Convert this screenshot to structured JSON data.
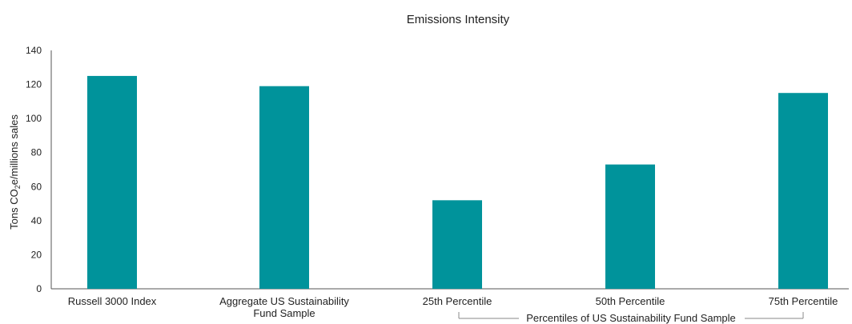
{
  "chart_data": {
    "type": "bar",
    "title": "Emissions Intensity",
    "ylabel": "Tons CO2e/millions sales",
    "ylabel_parts": {
      "pre": "Tons CO",
      "sub": "2",
      "post": "e/millions sales"
    },
    "ylim": [
      0,
      140
    ],
    "yticks": [
      0,
      20,
      40,
      60,
      80,
      100,
      120,
      140
    ],
    "grid": false,
    "legend": "none",
    "categories": [
      "Russell 3000 Index",
      "Aggregate US Sustainability Fund Sample",
      "25th Percentile",
      "50th Percentile",
      "75th Percentile"
    ],
    "category_lines": [
      [
        "Russell 3000 Index"
      ],
      [
        "Aggregate US Sustainability",
        "Fund Sample"
      ],
      [
        "25th Percentile"
      ],
      [
        "50th Percentile"
      ],
      [
        "75th Percentile"
      ]
    ],
    "values": [
      125,
      119,
      52,
      73,
      115
    ],
    "bar_color": "#00939b",
    "group_label": "Percentiles of US Sustainability Fund Sample"
  }
}
